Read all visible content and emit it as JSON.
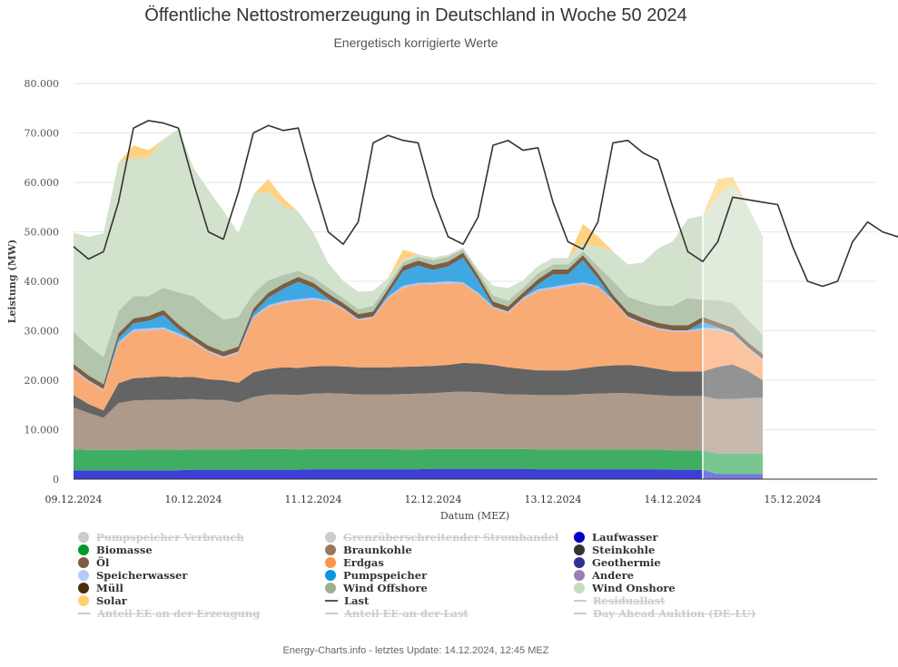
{
  "header": {
    "title": "Öffentliche Nettostromerzeugung in Deutschland in Woche 50 2024",
    "subtitle": "Energetisch korrigierte Werte"
  },
  "footer": "Energy-Charts.info - letztes Update: 14.12.2024, 12:45 MEZ",
  "chart_data": {
    "type": "area",
    "stacked": true,
    "title": "Öffentliche Nettostromerzeugung in Deutschland in Woche 50 2024",
    "subtitle": "Energetisch korrigierte Werte",
    "xlabel": "Datum (MEZ)",
    "ylabel": "Leistung (MW)",
    "ylim": [
      0,
      80000
    ],
    "yticks": [
      0,
      10000,
      20000,
      30000,
      40000,
      50000,
      60000,
      70000,
      80000
    ],
    "ytick_labels": [
      "0",
      "10.000",
      "20.000",
      "30.000",
      "40.000",
      "50.000",
      "60.000",
      "70.000",
      "80.000"
    ],
    "x_unit": "days since 09.12.2024 00:00",
    "xlim": [
      0,
      6.7
    ],
    "xticks": [
      0,
      1,
      2,
      3,
      4,
      5,
      6
    ],
    "xtick_labels": [
      "09.12.2024",
      "10.12.2024",
      "11.12.2024",
      "12.12.2024",
      "13.12.2024",
      "14.12.2024",
      "15.12.2024"
    ],
    "forecast_start": 5.25,
    "sample_step_hours": 3,
    "grid": true,
    "legend_position": "bottom",
    "series": [
      {
        "name": "Laufwasser",
        "color": "#3c3ed6",
        "values": [
          1800,
          1800,
          1800,
          1800,
          1800,
          1800,
          1800,
          1800,
          1900,
          1900,
          1900,
          1900,
          1900,
          1900,
          1900,
          1900,
          2000,
          2000,
          2000,
          2000,
          2000,
          2000,
          2000,
          2000,
          2100,
          2100,
          2100,
          2100,
          2100,
          2100,
          2100,
          2000,
          2000,
          2000,
          2000,
          2000,
          2000,
          2000,
          2000,
          2000,
          1900,
          1900,
          1900,
          1000,
          1000,
          1000,
          1000
        ]
      },
      {
        "name": "Biomasse",
        "color": "#3fae62",
        "values": [
          4200,
          4100,
          4100,
          4100,
          4100,
          4200,
          4200,
          4100,
          4100,
          4100,
          4100,
          4100,
          4200,
          4200,
          4200,
          4100,
          4100,
          4100,
          4100,
          4100,
          4100,
          4100,
          4000,
          4000,
          4000,
          4000,
          4000,
          4000,
          4000,
          4000,
          4000,
          4000,
          4000,
          4000,
          4000,
          4000,
          4000,
          4000,
          4000,
          4000,
          3900,
          3900,
          3900,
          4200,
          4200,
          4200,
          4200
        ]
      },
      {
        "name": "Braunkohle",
        "color": "#ad9a8a",
        "values": [
          8500,
          7500,
          6500,
          9500,
          10000,
          10000,
          10000,
          10200,
          10200,
          10000,
          10000,
          9500,
          10500,
          11000,
          11000,
          11000,
          11200,
          11300,
          11200,
          11000,
          11000,
          11000,
          11200,
          11300,
          11300,
          11500,
          11600,
          11500,
          11300,
          11000,
          11000,
          11000,
          11000,
          11000,
          11200,
          11300,
          11400,
          11400,
          11200,
          11000,
          11000,
          11000,
          11000,
          11000,
          11000,
          11200,
          11300
        ]
      },
      {
        "name": "Steinkohle",
        "color": "#646464",
        "values": [
          2500,
          1800,
          1500,
          4000,
          4500,
          4600,
          4800,
          4500,
          4500,
          4200,
          4000,
          4000,
          5000,
          5200,
          5500,
          5500,
          5500,
          5500,
          5500,
          5500,
          5500,
          5500,
          5500,
          5500,
          5500,
          5500,
          5800,
          5800,
          5700,
          5500,
          5200,
          5000,
          5000,
          5000,
          5200,
          5500,
          5600,
          5700,
          5600,
          5300,
          5000,
          5000,
          5000,
          6500,
          7000,
          5500,
          3500
        ]
      },
      {
        "name": "Erdgas",
        "color": "#f9ab75",
        "values": [
          5000,
          4500,
          4000,
          8000,
          9500,
          9500,
          9500,
          8500,
          7000,
          5500,
          4500,
          6000,
          11000,
          12500,
          13000,
          13500,
          13500,
          13000,
          11500,
          9500,
          10000,
          14000,
          16000,
          16500,
          16500,
          16500,
          16000,
          14000,
          11500,
          11000,
          14000,
          16000,
          16500,
          17000,
          17000,
          16000,
          13000,
          9500,
          8500,
          8000,
          8000,
          8000,
          8500,
          7500,
          6000,
          4500,
          4000
        ]
      },
      {
        "name": "Speicherwasser",
        "color": "#b5c5f2",
        "values": [
          300,
          300,
          300,
          300,
          400,
          400,
          400,
          400,
          300,
          300,
          300,
          300,
          300,
          400,
          400,
          400,
          400,
          300,
          300,
          300,
          300,
          300,
          400,
          400,
          400,
          400,
          300,
          300,
          300,
          300,
          400,
          400,
          400,
          400,
          400,
          300,
          300,
          300,
          300,
          300,
          300,
          300,
          300,
          300,
          300,
          300,
          300
        ]
      },
      {
        "name": "Pumpspeicher",
        "color": "#3fa8e3",
        "values": [
          0,
          0,
          0,
          800,
          1200,
          1500,
          2500,
          800,
          0,
          0,
          0,
          0,
          600,
          1500,
          2500,
          3500,
          2000,
          300,
          0,
          0,
          0,
          600,
          3000,
          3500,
          2500,
          3000,
          5000,
          2500,
          0,
          0,
          0,
          1000,
          2500,
          2000,
          4500,
          1500,
          0,
          0,
          0,
          0,
          0,
          0,
          1200,
          200,
          100,
          0,
          0
        ]
      },
      {
        "name": "Öl/Müll",
        "color": "#7b5e42",
        "values": [
          1000,
          1000,
          1000,
          1000,
          1000,
          1000,
          1000,
          1000,
          1000,
          1000,
          1000,
          1000,
          1000,
          1000,
          1000,
          1000,
          1000,
          1000,
          1000,
          1000,
          1000,
          1000,
          1000,
          1000,
          1000,
          1000,
          1000,
          1000,
          1000,
          1000,
          1000,
          1000,
          1000,
          1000,
          1000,
          1000,
          1000,
          1000,
          1000,
          1000,
          1000,
          1000,
          1000,
          1000,
          1000,
          1000,
          1000
        ]
      },
      {
        "name": "Wind Offshore",
        "color": "#b4c5ad",
        "values": [
          6500,
          6000,
          5500,
          4500,
          4500,
          4000,
          4500,
          6500,
          8000,
          7500,
          6500,
          6000,
          3000,
          2500,
          1800,
          1200,
          1200,
          1200,
          1000,
          1000,
          1200,
          1000,
          800,
          800,
          1000,
          1000,
          700,
          800,
          1200,
          1200,
          1000,
          1200,
          1000,
          1000,
          800,
          1500,
          2800,
          3000,
          3200,
          3500,
          4000,
          5500,
          3500,
          4500,
          5000,
          4500,
          3800
        ]
      },
      {
        "name": "Wind Onshore",
        "color": "#d3e2cd",
        "values": [
          20000,
          22000,
          25000,
          30000,
          28000,
          28000,
          30000,
          33000,
          26000,
          24000,
          22000,
          17000,
          20000,
          18000,
          14000,
          12000,
          9000,
          5000,
          3500,
          3500,
          3000,
          1200,
          500,
          500,
          500,
          400,
          300,
          400,
          2000,
          2500,
          1500,
          1500,
          1300,
          1300,
          1500,
          4000,
          6000,
          6500,
          8000,
          11500,
          13000,
          16000,
          17000,
          21000,
          24000,
          23000,
          20000
        ]
      },
      {
        "name": "Solar",
        "color": "#ffd27f",
        "values": [
          0,
          0,
          0,
          0,
          2500,
          1500,
          0,
          0,
          0,
          0,
          0,
          0,
          0,
          2500,
          1500,
          0,
          0,
          0,
          0,
          0,
          0,
          0,
          2000,
          0,
          0,
          0,
          0,
          0,
          0,
          0,
          0,
          0,
          0,
          0,
          4000,
          2000,
          0,
          0,
          0,
          0,
          0,
          0,
          0,
          3500,
          1500,
          0,
          0
        ]
      }
    ],
    "load": {
      "name": "Last",
      "color": "#333333",
      "values": [
        47000,
        44500,
        46000,
        56000,
        71000,
        72500,
        72000,
        71000,
        60000,
        50000,
        48500,
        58000,
        70000,
        71500,
        70500,
        71000,
        60000,
        50000,
        47500,
        52000,
        68000,
        69500,
        68500,
        68000,
        57000,
        49000,
        47500,
        53000,
        67500,
        68500,
        66500,
        67000,
        56000,
        48000,
        46500,
        52000,
        68000,
        68500,
        66000,
        64500,
        55000,
        46000,
        44000,
        48000,
        57000,
        56500,
        56000,
        55500,
        47000,
        40000,
        39000,
        40000,
        48000,
        52000,
        50000,
        49000,
        53000,
        48500,
        44000
      ]
    },
    "legend": [
      {
        "label": "Pumpspeicher Verbrauch",
        "color": "#cccccc",
        "marker": "dot",
        "enabled": false
      },
      {
        "label": "Grenzüberschreitender Stromhandel",
        "color": "#cccccc",
        "marker": "dot",
        "enabled": false
      },
      {
        "label": "Laufwasser",
        "color": "#0000cc",
        "marker": "dot",
        "enabled": true
      },
      {
        "label": "Biomasse",
        "color": "#00982f",
        "marker": "dot",
        "enabled": true
      },
      {
        "label": "Braunkohle",
        "color": "#987860",
        "marker": "dot",
        "enabled": true
      },
      {
        "label": "Steinkohle",
        "color": "#333333",
        "marker": "dot",
        "enabled": true
      },
      {
        "label": "Öl",
        "color": "#7b5e42",
        "marker": "dot",
        "enabled": true
      },
      {
        "label": "Erdgas",
        "color": "#fb9648",
        "marker": "dot",
        "enabled": true
      },
      {
        "label": "Geothermie",
        "color": "#2e3392",
        "marker": "dot",
        "enabled": true
      },
      {
        "label": "Speicherwasser",
        "color": "#b5c8f8",
        "marker": "dot",
        "enabled": true
      },
      {
        "label": "Pumpspeicher",
        "color": "#0a96e3",
        "marker": "dot",
        "enabled": true
      },
      {
        "label": "Andere",
        "color": "#9b7fb5",
        "marker": "dot",
        "enabled": true
      },
      {
        "label": "Müll",
        "color": "#4a2f0a",
        "marker": "dot",
        "enabled": true
      },
      {
        "label": "Wind Offshore",
        "color": "#9daf91",
        "marker": "dot",
        "enabled": true
      },
      {
        "label": "Wind Onshore",
        "color": "#c4dcbc",
        "marker": "dot",
        "enabled": true
      },
      {
        "label": "Solar",
        "color": "#ffd26e",
        "marker": "dot",
        "enabled": true
      },
      {
        "label": "Last",
        "color": "#555555",
        "marker": "line",
        "enabled": true
      },
      {
        "label": "Residuallast",
        "color": "#cccccc",
        "marker": "line",
        "enabled": false
      },
      {
        "label": "Anteil EE an der Erzeugung",
        "color": "#cccccc",
        "marker": "line",
        "enabled": false
      },
      {
        "label": "Anteil EE an der Last",
        "color": "#cccccc",
        "marker": "line",
        "enabled": false
      },
      {
        "label": "Day Ahead Auktion (DE-LU)",
        "color": "#cccccc",
        "marker": "line",
        "enabled": false
      }
    ]
  }
}
